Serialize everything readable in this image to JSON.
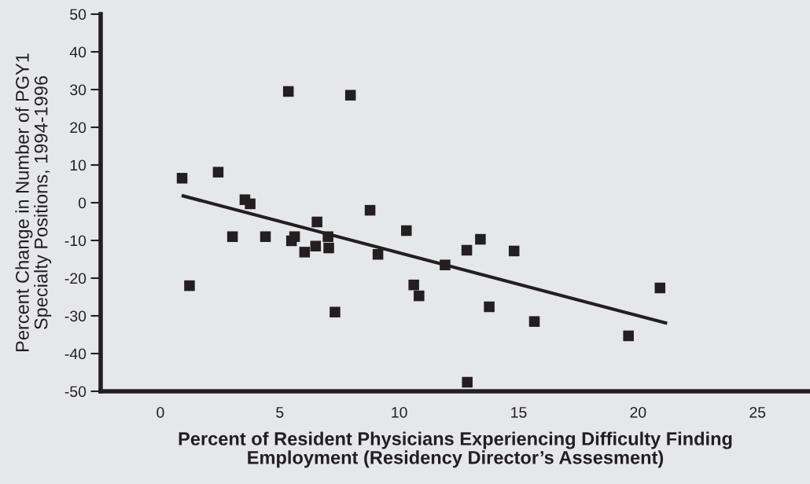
{
  "chart_data": {
    "type": "scatter",
    "xlabel": "Percent of Resident Physicians Experiencing Difficulty Finding\nEmployment (Residency Director’s Assesment)",
    "ylabel": "Percent Change in Number of PGY1\nSpecialty Positions, 1994-1996",
    "series": [
      {
        "color": "#231f20",
        "marker": "square",
        "x": [
          0.91,
          1.22,
          2.42,
          3.02,
          3.54,
          3.76,
          4.4,
          5.36,
          5.49,
          5.62,
          6.04,
          6.5,
          6.56,
          7.02,
          7.05,
          7.31,
          7.96,
          8.78,
          9.11,
          10.3,
          10.61,
          10.83,
          11.92,
          12.83,
          12.85,
          13.4,
          13.77,
          14.81,
          15.66,
          19.6,
          20.92
        ],
        "values": [
          6.5,
          -22.0,
          8.1,
          -9.0,
          0.8,
          -0.3,
          -9.0,
          29.5,
          -10.1,
          -9.0,
          -13.1,
          -11.5,
          -5.1,
          -9.0,
          -12.0,
          -29.0,
          28.5,
          -2.0,
          -13.7,
          -7.4,
          -21.8,
          -24.7,
          -16.5,
          -12.6,
          -47.6,
          -9.7,
          -27.6,
          -12.8,
          -31.5,
          -35.3,
          -22.6
        ]
      },
      {
        "type": "line",
        "color": "#231f20",
        "marker": "none",
        "line_style": "solid",
        "x": [
          0.89,
          21.22
        ],
        "values": [
          1.9,
          -32.0
        ]
      }
    ],
    "xlim": [
      -2.5,
      27.2
    ],
    "xticks": [
      0,
      5,
      10,
      15,
      20,
      25
    ],
    "ylim": [
      -50,
      50
    ],
    "yticks": [
      -50,
      -40,
      -30,
      -20,
      -10,
      0,
      10,
      20,
      30,
      40,
      50
    ],
    "grid": false,
    "legend": false
  }
}
